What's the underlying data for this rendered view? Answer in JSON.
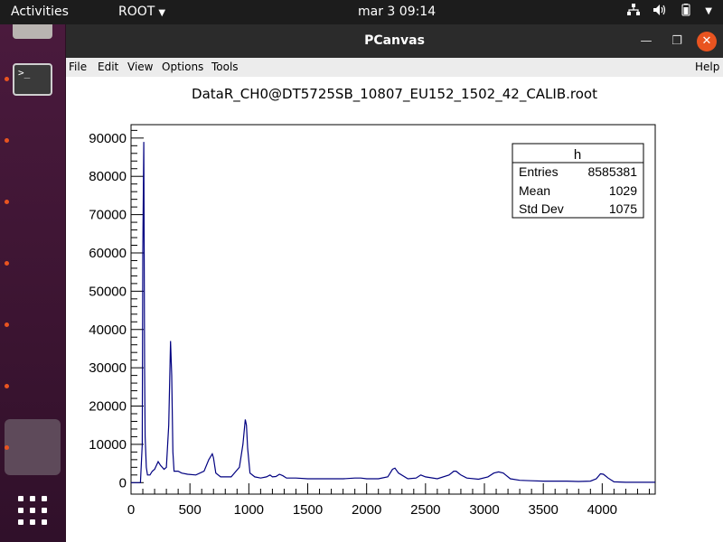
{
  "topbar": {
    "activities": "Activities",
    "app_menu": "ROOT",
    "clock": "mar 3  09:14"
  },
  "window": {
    "title": "PCanvas"
  },
  "menu": {
    "file": "File",
    "edit": "Edit",
    "view": "View",
    "options": "Options",
    "tools": "Tools",
    "help": "Help"
  },
  "chart_data": {
    "type": "line",
    "title": "DataR_CH0@DT5725SB_10807_EU152_1502_42_CALIB.root",
    "xlim": [
      0,
      4450
    ],
    "ylim": [
      -3000,
      93500
    ],
    "x_ticks": [
      0,
      500,
      1000,
      1500,
      2000,
      2500,
      3000,
      3500,
      4000
    ],
    "y_ticks": [
      0,
      10000,
      20000,
      30000,
      40000,
      50000,
      60000,
      70000,
      80000,
      90000
    ],
    "color": "#000080",
    "x": [
      0,
      60,
      80,
      95,
      100,
      108,
      115,
      120,
      130,
      140,
      160,
      180,
      200,
      230,
      250,
      280,
      300,
      320,
      335,
      345,
      355,
      365,
      380,
      400,
      430,
      480,
      550,
      620,
      660,
      690,
      700,
      720,
      760,
      850,
      920,
      950,
      970,
      980,
      990,
      1010,
      1050,
      1100,
      1150,
      1180,
      1200,
      1230,
      1260,
      1290,
      1320,
      1400,
      1500,
      1600,
      1700,
      1800,
      1900,
      1950,
      2000,
      2100,
      2180,
      2220,
      2240,
      2270,
      2350,
      2420,
      2460,
      2500,
      2600,
      2700,
      2740,
      2760,
      2800,
      2850,
      2950,
      3030,
      3080,
      3120,
      3160,
      3180,
      3220,
      3300,
      3400,
      3500,
      3600,
      3700,
      3800,
      3900,
      3950,
      3985,
      4010,
      4050,
      4100,
      4200,
      4300,
      4450
    ],
    "y": [
      0,
      0,
      0,
      10000,
      60000,
      89000,
      30000,
      12000,
      4000,
      2000,
      2000,
      3000,
      3500,
      5500,
      4500,
      3500,
      4000,
      15000,
      37000,
      28000,
      8000,
      3000,
      3000,
      3000,
      2500,
      2200,
      2000,
      3000,
      6000,
      7500,
      6500,
      2500,
      1500,
      1500,
      4000,
      10000,
      16500,
      15000,
      9000,
      2500,
      1500,
      1200,
      1500,
      2000,
      1500,
      1600,
      2200,
      1800,
      1200,
      1200,
      1000,
      1000,
      1000,
      1000,
      1200,
      1200,
      1000,
      1000,
      1500,
      3500,
      3800,
      2500,
      1000,
      1200,
      2000,
      1500,
      1000,
      2000,
      3000,
      3000,
      2000,
      1200,
      900,
      1500,
      2500,
      2800,
      2500,
      2000,
      1000,
      600,
      500,
      400,
      400,
      400,
      300,
      400,
      1000,
      2300,
      2200,
      1200,
      200,
      100,
      100,
      100
    ]
  },
  "stats": {
    "title": "h",
    "entries_label": "Entries",
    "entries_value": "8585381",
    "mean_label": "Mean",
    "mean_value": "1029",
    "stddev_label": "Std Dev",
    "stddev_value": "1075"
  }
}
